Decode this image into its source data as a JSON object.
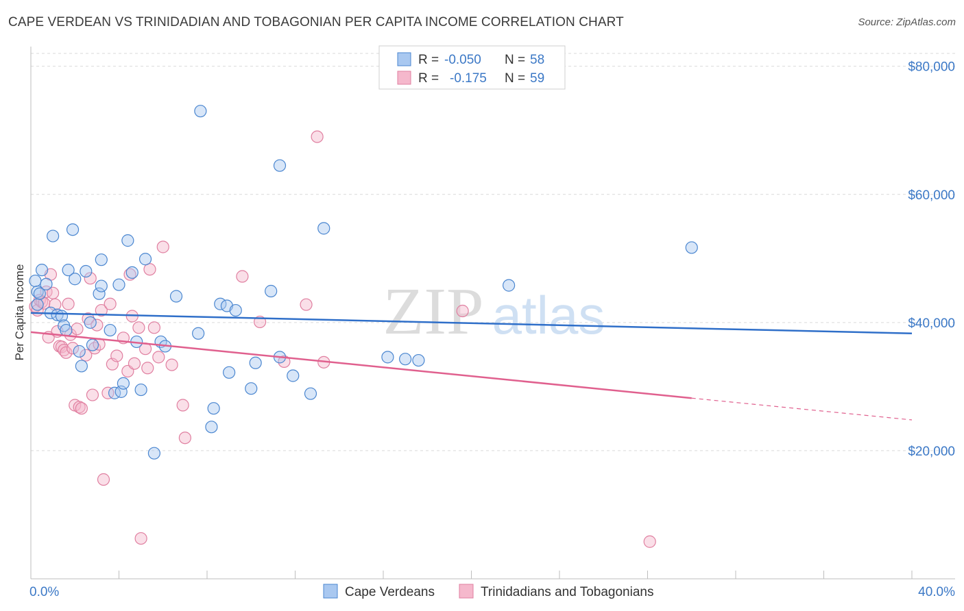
{
  "title": "CAPE VERDEAN VS TRINIDADIAN AND TOBAGONIAN PER CAPITA INCOME CORRELATION CHART",
  "source": "Source: ZipAtlas.com",
  "watermark": {
    "zip": "ZIP",
    "atlas": "atlas"
  },
  "colors": {
    "blue_fill": "#a9c8f0",
    "blue_stroke": "#4a86d0",
    "blue_line": "#2f6fc9",
    "pink_fill": "#f5b8cc",
    "pink_stroke": "#e07fa0",
    "pink_line": "#e0608e",
    "tick_text": "#3b78c6",
    "grid": "#d9d9d9"
  },
  "chart_data": {
    "type": "scatter",
    "title": "CAPE VERDEAN VS TRINIDADIAN AND TOBAGONIAN PER CAPITA INCOME CORRELATION CHART",
    "xlabel": "",
    "ylabel": "Per Capita Income",
    "xlim": [
      0,
      40
    ],
    "ylim": [
      0,
      82000
    ],
    "x_tick_labels": [
      "0.0%",
      "40.0%"
    ],
    "y_ticks": [
      20000,
      40000,
      60000,
      80000
    ],
    "y_tick_labels": [
      "$20,000",
      "$40,000",
      "$60,000",
      "$80,000"
    ],
    "legend_position": "top-center",
    "legend_box": [
      {
        "r_label": "R =",
        "r_value": "-0.050",
        "n_label": "N =",
        "n_value": "58"
      },
      {
        "r_label": "R =",
        "r_value": "-0.175",
        "n_label": "N =",
        "n_value": "59"
      }
    ],
    "series": [
      {
        "name": "Cape Verdeans",
        "r": -0.05,
        "n": 58,
        "trend": {
          "x": [
            0,
            40
          ],
          "y": [
            41500,
            38300
          ]
        },
        "points": [
          [
            0.2,
            46500
          ],
          [
            0.3,
            44800
          ],
          [
            0.5,
            48200
          ],
          [
            0.4,
            44500
          ],
          [
            0.7,
            46000
          ],
          [
            0.9,
            41500
          ],
          [
            1.0,
            53500
          ],
          [
            1.2,
            41200
          ],
          [
            1.4,
            41000
          ],
          [
            1.5,
            39500
          ],
          [
            1.6,
            38800
          ],
          [
            1.7,
            48200
          ],
          [
            1.9,
            54500
          ],
          [
            2.0,
            46800
          ],
          [
            2.2,
            35500
          ],
          [
            2.3,
            33200
          ],
          [
            2.5,
            48000
          ],
          [
            2.7,
            40000
          ],
          [
            2.8,
            36500
          ],
          [
            3.1,
            44500
          ],
          [
            3.2,
            45700
          ],
          [
            3.2,
            49800
          ],
          [
            3.6,
            38800
          ],
          [
            3.8,
            29000
          ],
          [
            4.0,
            45900
          ],
          [
            4.1,
            29200
          ],
          [
            4.2,
            30500
          ],
          [
            4.4,
            52800
          ],
          [
            4.6,
            47800
          ],
          [
            4.8,
            37000
          ],
          [
            5.0,
            29500
          ],
          [
            5.2,
            49900
          ],
          [
            5.6,
            19600
          ],
          [
            5.9,
            37000
          ],
          [
            6.1,
            36300
          ],
          [
            6.6,
            44100
          ],
          [
            7.6,
            38300
          ],
          [
            7.7,
            73000
          ],
          [
            8.2,
            23700
          ],
          [
            8.3,
            26600
          ],
          [
            8.6,
            42900
          ],
          [
            8.9,
            42600
          ],
          [
            9.0,
            32200
          ],
          [
            9.3,
            41900
          ],
          [
            10.0,
            29700
          ],
          [
            10.2,
            33700
          ],
          [
            10.9,
            44900
          ],
          [
            11.3,
            34600
          ],
          [
            11.3,
            64500
          ],
          [
            11.9,
            31700
          ],
          [
            12.7,
            28900
          ],
          [
            13.3,
            54700
          ],
          [
            16.2,
            34600
          ],
          [
            17.0,
            34300
          ],
          [
            17.6,
            34100
          ],
          [
            21.7,
            45800
          ],
          [
            30.0,
            51700
          ],
          [
            0.3,
            42800
          ]
        ]
      },
      {
        "name": "Trinidadians and Tobagonians",
        "r": -0.175,
        "n": 59,
        "trend": {
          "x": [
            0,
            30
          ],
          "y": [
            38500,
            28200
          ]
        },
        "trend_dashed": {
          "x": [
            30,
            40
          ],
          "y": [
            28200,
            24800
          ]
        },
        "points": [
          [
            0.2,
            42500
          ],
          [
            0.3,
            41900
          ],
          [
            0.4,
            43500
          ],
          [
            0.5,
            43200
          ],
          [
            0.6,
            43000
          ],
          [
            0.7,
            44800
          ],
          [
            0.8,
            37700
          ],
          [
            0.9,
            47500
          ],
          [
            1.0,
            44600
          ],
          [
            1.1,
            42800
          ],
          [
            1.2,
            38600
          ],
          [
            1.3,
            36300
          ],
          [
            1.4,
            36200
          ],
          [
            1.5,
            35700
          ],
          [
            1.6,
            35300
          ],
          [
            1.7,
            42900
          ],
          [
            1.8,
            38100
          ],
          [
            1.9,
            36000
          ],
          [
            2.0,
            27100
          ],
          [
            2.1,
            39000
          ],
          [
            2.2,
            26800
          ],
          [
            2.3,
            26600
          ],
          [
            2.5,
            34900
          ],
          [
            2.6,
            40600
          ],
          [
            2.7,
            46900
          ],
          [
            2.8,
            28700
          ],
          [
            2.9,
            36000
          ],
          [
            3.0,
            39600
          ],
          [
            3.1,
            36600
          ],
          [
            3.2,
            41900
          ],
          [
            3.3,
            15500
          ],
          [
            3.5,
            29000
          ],
          [
            3.6,
            42900
          ],
          [
            3.7,
            33500
          ],
          [
            3.9,
            34800
          ],
          [
            4.2,
            37600
          ],
          [
            4.4,
            32400
          ],
          [
            4.5,
            47500
          ],
          [
            4.6,
            41000
          ],
          [
            4.7,
            33600
          ],
          [
            4.9,
            39200
          ],
          [
            5.0,
            6300
          ],
          [
            5.2,
            35900
          ],
          [
            5.3,
            32900
          ],
          [
            5.4,
            48300
          ],
          [
            5.6,
            39200
          ],
          [
            5.8,
            34600
          ],
          [
            6.0,
            51800
          ],
          [
            6.4,
            33400
          ],
          [
            6.9,
            27100
          ],
          [
            7.0,
            22000
          ],
          [
            9.6,
            47200
          ],
          [
            10.4,
            40100
          ],
          [
            11.5,
            33900
          ],
          [
            12.5,
            42800
          ],
          [
            13.0,
            69000
          ],
          [
            13.3,
            33800
          ],
          [
            19.6,
            41800
          ],
          [
            28.1,
            5800
          ]
        ]
      }
    ]
  }
}
